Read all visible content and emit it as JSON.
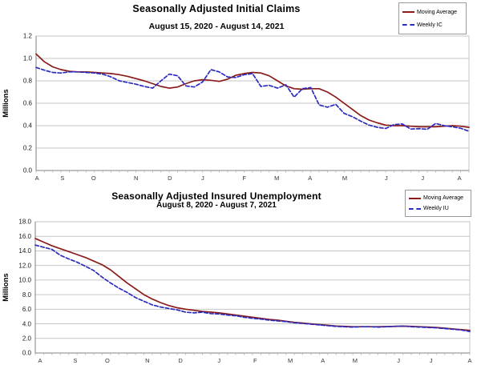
{
  "colors": {
    "moving_average_line": "#8B1B1B",
    "weekly_line": "#2B2BBF",
    "gridline": "#C6C6C6",
    "axis": "#808080",
    "tick": "#B5B5B5",
    "label_text": "#333333"
  },
  "chart_data": [
    {
      "type": "line",
      "title": "Seasonally Adjusted Initial Claims",
      "subtitle": "August 15, 2020 - August 14, 2021",
      "ylabel": "Millions",
      "xlabel": "",
      "ylim": [
        0.0,
        1.2
      ],
      "ytick_labels": [
        "1.2",
        "1.0",
        "0.8",
        "0.6",
        "0.4",
        "0.2",
        "0.0"
      ],
      "xtick_labels": [
        "A",
        "S",
        "O",
        "N",
        "D",
        "J",
        "F",
        "M",
        "A",
        "M",
        "J",
        "J",
        "A"
      ],
      "n_points": 53,
      "grid": true,
      "legend_position": "top-right",
      "series": [
        {
          "name": "Moving Average",
          "color": "#8B1B1B",
          "line_style": "solid",
          "values": [
            1.04,
            0.97,
            0.925,
            0.9,
            0.885,
            0.88,
            0.88,
            0.875,
            0.87,
            0.865,
            0.855,
            0.84,
            0.82,
            0.8,
            0.775,
            0.75,
            0.735,
            0.745,
            0.775,
            0.8,
            0.81,
            0.805,
            0.795,
            0.815,
            0.85,
            0.865,
            0.875,
            0.87,
            0.845,
            0.8,
            0.755,
            0.73,
            0.725,
            0.73,
            0.73,
            0.7,
            0.655,
            0.6,
            0.545,
            0.49,
            0.45,
            0.425,
            0.405,
            0.4,
            0.4,
            0.395,
            0.39,
            0.39,
            0.39,
            0.395,
            0.4,
            0.395,
            0.385
          ]
        },
        {
          "name": "Weekly IC",
          "color": "#2B2BBF",
          "line_style": "dashed",
          "values": [
            0.92,
            0.895,
            0.875,
            0.87,
            0.88,
            0.88,
            0.875,
            0.87,
            0.86,
            0.835,
            0.8,
            0.785,
            0.77,
            0.75,
            0.735,
            0.8,
            0.86,
            0.845,
            0.755,
            0.745,
            0.79,
            0.9,
            0.88,
            0.835,
            0.83,
            0.855,
            0.865,
            0.75,
            0.76,
            0.735,
            0.765,
            0.655,
            0.73,
            0.74,
            0.585,
            0.565,
            0.59,
            0.51,
            0.48,
            0.44,
            0.405,
            0.385,
            0.375,
            0.41,
            0.415,
            0.37,
            0.373,
            0.368,
            0.42,
            0.4,
            0.39,
            0.377,
            0.35
          ]
        }
      ]
    },
    {
      "type": "line",
      "title": "Seasonally Adjusted Insured Unemployment",
      "subtitle": "August 8, 2020 - August 7, 2021",
      "ylabel": "Millions",
      "xlabel": "",
      "ylim": [
        0.0,
        18.0
      ],
      "ytick_labels": [
        "18.0",
        "16.0",
        "14.0",
        "12.0",
        "10.0",
        "8.0",
        "6.0",
        "4.0",
        "2.0",
        "0.0"
      ],
      "xtick_labels": [
        "A",
        "S",
        "O",
        "N",
        "D",
        "J",
        "F",
        "M",
        "A",
        "M",
        "J",
        "J",
        "A"
      ],
      "n_points": 53,
      "grid": true,
      "legend_position": "top-right",
      "series": [
        {
          "name": "Moving Average",
          "color": "#8B1B1B",
          "line_style": "solid",
          "values": [
            15.7,
            15.2,
            14.7,
            14.3,
            13.9,
            13.5,
            13.1,
            12.6,
            12.1,
            11.4,
            10.5,
            9.6,
            8.8,
            8.0,
            7.4,
            6.9,
            6.5,
            6.2,
            6.0,
            5.85,
            5.7,
            5.6,
            5.5,
            5.35,
            5.2,
            5.05,
            4.9,
            4.75,
            4.6,
            4.5,
            4.35,
            4.2,
            4.1,
            4.0,
            3.9,
            3.8,
            3.7,
            3.65,
            3.6,
            3.6,
            3.6,
            3.6,
            3.62,
            3.65,
            3.68,
            3.65,
            3.6,
            3.55,
            3.5,
            3.4,
            3.3,
            3.2,
            3.1
          ]
        },
        {
          "name": "Weekly IU",
          "color": "#2B2BBF",
          "line_style": "dashed",
          "values": [
            14.8,
            14.5,
            14.2,
            13.4,
            12.9,
            12.45,
            11.9,
            11.3,
            10.4,
            9.6,
            8.9,
            8.3,
            7.6,
            7.1,
            6.6,
            6.3,
            6.1,
            5.9,
            5.6,
            5.5,
            5.6,
            5.4,
            5.35,
            5.2,
            5.1,
            4.9,
            4.75,
            4.65,
            4.5,
            4.4,
            4.3,
            4.15,
            4.05,
            3.95,
            3.85,
            3.75,
            3.65,
            3.6,
            3.55,
            3.6,
            3.6,
            3.55,
            3.6,
            3.65,
            3.7,
            3.6,
            3.55,
            3.5,
            3.45,
            3.35,
            3.25,
            3.15,
            2.95
          ]
        }
      ]
    }
  ]
}
